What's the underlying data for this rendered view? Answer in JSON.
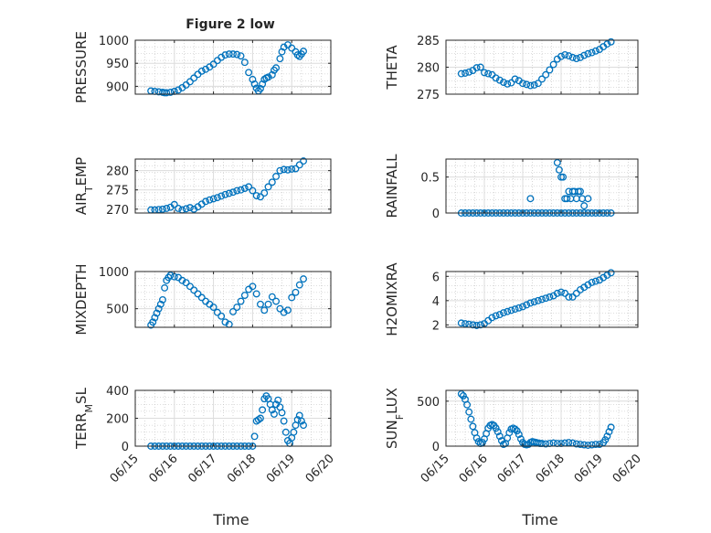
{
  "figure": {
    "title": "Figure 2 low",
    "colors": {
      "marker": "#0072BD",
      "axis": "#262626",
      "grid": "#dcdcdc",
      "minor_grid": "#bdbdbd"
    }
  },
  "chart_data": [
    {
      "type": "scatter",
      "ylabel": "PRESSURE",
      "ylim": [
        883,
        1000
      ],
      "yticks": [
        900,
        950,
        1000
      ],
      "xlim": [
        0,
        5
      ],
      "grid": true,
      "x": [
        0.4,
        0.5,
        0.6,
        0.7,
        0.75,
        0.8,
        0.9,
        1.0,
        1.1,
        1.2,
        1.3,
        1.4,
        1.5,
        1.6,
        1.7,
        1.8,
        1.9,
        2.0,
        2.1,
        2.2,
        2.3,
        2.4,
        2.5,
        2.6,
        2.7,
        2.8,
        2.9,
        3.0,
        3.05,
        3.1,
        3.15,
        3.2,
        3.25,
        3.3,
        3.35,
        3.4,
        3.5,
        3.55,
        3.6,
        3.7,
        3.75,
        3.8,
        3.9,
        4.0,
        4.1,
        4.15,
        4.2,
        4.25,
        4.3
      ],
      "y": [
        890,
        889,
        888,
        887,
        886,
        886,
        887,
        889,
        892,
        897,
        903,
        910,
        918,
        926,
        933,
        937,
        942,
        948,
        956,
        963,
        968,
        970,
        970,
        969,
        966,
        952,
        930,
        915,
        905,
        896,
        890,
        895,
        905,
        915,
        918,
        920,
        925,
        935,
        940,
        960,
        975,
        985,
        990,
        983,
        975,
        968,
        965,
        970,
        976
      ]
    },
    {
      "type": "scatter",
      "ylabel": "THETA",
      "ylim": [
        275,
        285
      ],
      "yticks": [
        275,
        280,
        285
      ],
      "xlim": [
        0,
        5
      ],
      "grid": true,
      "x": [
        0.4,
        0.5,
        0.6,
        0.7,
        0.8,
        0.9,
        1.0,
        1.1,
        1.2,
        1.3,
        1.4,
        1.5,
        1.6,
        1.7,
        1.8,
        1.9,
        2.0,
        2.1,
        2.2,
        2.3,
        2.4,
        2.5,
        2.6,
        2.7,
        2.8,
        2.9,
        3.0,
        3.1,
        3.2,
        3.3,
        3.4,
        3.5,
        3.6,
        3.7,
        3.8,
        3.9,
        4.0,
        4.1,
        4.2,
        4.3
      ],
      "y": [
        278.8,
        278.9,
        279.1,
        279.4,
        279.9,
        280.0,
        279.0,
        278.8,
        278.6,
        278.0,
        277.6,
        277.2,
        276.9,
        277.1,
        277.8,
        277.5,
        277.0,
        276.8,
        276.6,
        276.7,
        277.0,
        277.8,
        278.6,
        279.5,
        280.5,
        281.5,
        282.0,
        282.3,
        282.1,
        281.8,
        281.6,
        281.8,
        282.2,
        282.5,
        282.7,
        283.0,
        283.3,
        283.8,
        284.3,
        284.7
      ]
    },
    {
      "type": "scatter",
      "ylabel": "AIR_TEMP",
      "ylabel_display": {
        "base": "AIR",
        "sub": "T",
        "rest": "EMP"
      },
      "ylim": [
        269,
        283
      ],
      "yticks": [
        270,
        275,
        280
      ],
      "xlim": [
        0,
        5
      ],
      "grid": true,
      "x": [
        0.4,
        0.5,
        0.6,
        0.7,
        0.8,
        0.9,
        1.0,
        1.1,
        1.2,
        1.3,
        1.4,
        1.5,
        1.6,
        1.7,
        1.8,
        1.9,
        2.0,
        2.1,
        2.2,
        2.3,
        2.4,
        2.5,
        2.6,
        2.7,
        2.8,
        2.9,
        3.0,
        3.1,
        3.2,
        3.3,
        3.4,
        3.5,
        3.6,
        3.7,
        3.8,
        3.9,
        4.0,
        4.1,
        4.2,
        4.3
      ],
      "y": [
        269.8,
        269.8,
        269.9,
        270.0,
        270.2,
        270.5,
        271.2,
        270.2,
        269.8,
        270.1,
        270.4,
        270.0,
        270.6,
        271.3,
        272.0,
        272.4,
        272.7,
        273.0,
        273.4,
        273.8,
        274.1,
        274.4,
        274.8,
        275.0,
        275.4,
        275.8,
        274.8,
        273.5,
        273.2,
        274.2,
        275.8,
        277.0,
        278.5,
        280.0,
        280.3,
        280.2,
        280.4,
        280.5,
        281.5,
        282.5
      ]
    },
    {
      "type": "scatter",
      "ylabel": "RAINFALL",
      "ylim": [
        0,
        0.75
      ],
      "yticks": [
        0,
        0.5
      ],
      "xlim": [
        0,
        5
      ],
      "grid": true,
      "x": [
        0.4,
        0.5,
        0.6,
        0.7,
        0.8,
        0.9,
        1.0,
        1.1,
        1.2,
        1.3,
        1.4,
        1.5,
        1.6,
        1.7,
        1.8,
        1.9,
        2.0,
        2.1,
        2.2,
        2.3,
        2.4,
        2.5,
        2.6,
        2.7,
        2.8,
        2.9,
        3.0,
        3.1,
        3.2,
        3.3,
        3.4,
        3.5,
        3.6,
        3.7,
        3.8,
        3.9,
        4.0,
        4.1,
        4.2,
        4.3,
        2.2,
        2.9,
        2.95,
        3.0,
        3.05,
        3.1,
        3.15,
        3.2,
        3.25,
        3.3,
        3.35,
        3.4,
        3.45,
        3.5,
        3.55,
        3.6,
        3.7
      ],
      "y": [
        0,
        0,
        0,
        0,
        0,
        0,
        0,
        0,
        0,
        0,
        0,
        0,
        0,
        0,
        0,
        0,
        0,
        0,
        0,
        0,
        0,
        0,
        0,
        0,
        0,
        0,
        0,
        0,
        0,
        0,
        0,
        0,
        0,
        0,
        0,
        0,
        0,
        0,
        0,
        0,
        0.2,
        0.7,
        0.6,
        0.5,
        0.5,
        0.2,
        0.2,
        0.3,
        0.2,
        0.3,
        0.3,
        0.2,
        0.3,
        0.3,
        0.2,
        0.1,
        0.2
      ]
    },
    {
      "type": "scatter",
      "ylabel": "MIXDEPTH",
      "ylim": [
        250,
        1000
      ],
      "yticks": [
        500,
        1000
      ],
      "xlim": [
        0,
        5
      ],
      "grid": true,
      "x": [
        0.4,
        0.45,
        0.5,
        0.55,
        0.6,
        0.65,
        0.7,
        0.75,
        0.8,
        0.85,
        0.9,
        1.0,
        1.1,
        1.2,
        1.3,
        1.4,
        1.5,
        1.6,
        1.7,
        1.8,
        1.9,
        2.0,
        2.1,
        2.2,
        2.3,
        2.4,
        2.5,
        2.6,
        2.7,
        2.8,
        2.9,
        3.0,
        3.1,
        3.2,
        3.3,
        3.4,
        3.5,
        3.6,
        3.7,
        3.8,
        3.9,
        4.0,
        4.1,
        4.2,
        4.3
      ],
      "y": [
        280,
        320,
        380,
        440,
        500,
        560,
        620,
        780,
        880,
        920,
        950,
        930,
        920,
        880,
        850,
        800,
        750,
        700,
        650,
        600,
        560,
        520,
        450,
        400,
        320,
        290,
        460,
        520,
        600,
        680,
        760,
        800,
        700,
        560,
        480,
        560,
        660,
        600,
        500,
        450,
        480,
        650,
        720,
        820,
        900
      ]
    },
    {
      "type": "scatter",
      "ylabel": "H2OMIXRA",
      "ylim": [
        1.8,
        6.4
      ],
      "yticks": [
        2,
        4,
        6
      ],
      "xlim": [
        0,
        5
      ],
      "grid": true,
      "x": [
        0.4,
        0.5,
        0.6,
        0.7,
        0.8,
        0.9,
        1.0,
        1.1,
        1.2,
        1.3,
        1.4,
        1.5,
        1.6,
        1.7,
        1.8,
        1.9,
        2.0,
        2.1,
        2.2,
        2.3,
        2.4,
        2.5,
        2.6,
        2.7,
        2.8,
        2.9,
        3.0,
        3.1,
        3.2,
        3.3,
        3.4,
        3.5,
        3.6,
        3.7,
        3.8,
        3.9,
        4.0,
        4.1,
        4.2,
        4.3
      ],
      "y": [
        2.15,
        2.1,
        2.05,
        2.0,
        1.95,
        2.0,
        2.1,
        2.35,
        2.6,
        2.75,
        2.85,
        3.0,
        3.1,
        3.2,
        3.3,
        3.4,
        3.5,
        3.65,
        3.8,
        3.9,
        4.0,
        4.1,
        4.2,
        4.3,
        4.4,
        4.6,
        4.7,
        4.6,
        4.3,
        4.3,
        4.6,
        4.9,
        5.1,
        5.3,
        5.5,
        5.6,
        5.7,
        5.9,
        6.1,
        6.3
      ]
    },
    {
      "type": "scatter",
      "ylabel": "TERR_MSL",
      "ylabel_display": {
        "base": "TERR",
        "sub": "M",
        "rest": "SL"
      },
      "ylim": [
        0,
        400
      ],
      "yticks": [
        0,
        200,
        400
      ],
      "xlim": [
        0,
        5
      ],
      "xticklabels": [
        "06/15",
        "06/16",
        "06/17",
        "06/18",
        "06/19",
        "06/20"
      ],
      "xlabel": "Time",
      "grid": true,
      "x": [
        0.4,
        0.5,
        0.6,
        0.7,
        0.8,
        0.9,
        1.0,
        1.1,
        1.2,
        1.3,
        1.4,
        1.5,
        1.6,
        1.7,
        1.8,
        1.9,
        2.0,
        2.1,
        2.2,
        2.3,
        2.4,
        2.5,
        2.6,
        2.7,
        2.8,
        2.9,
        3.0,
        3.05,
        3.1,
        3.15,
        3.2,
        3.25,
        3.3,
        3.35,
        3.4,
        3.45,
        3.5,
        3.55,
        3.6,
        3.65,
        3.7,
        3.75,
        3.8,
        3.85,
        3.9,
        3.95,
        4.0,
        4.05,
        4.1,
        4.15,
        4.2,
        4.25,
        4.3
      ],
      "y": [
        0,
        0,
        0,
        0,
        0,
        0,
        0,
        0,
        0,
        0,
        0,
        0,
        0,
        0,
        0,
        0,
        0,
        0,
        0,
        0,
        0,
        0,
        0,
        0,
        0,
        0,
        0,
        70,
        180,
        190,
        200,
        260,
        340,
        360,
        340,
        300,
        260,
        230,
        300,
        330,
        280,
        240,
        180,
        100,
        40,
        20,
        60,
        100,
        150,
        190,
        220,
        180,
        150
      ]
    },
    {
      "type": "scatter",
      "ylabel": "SUN_FLUX",
      "ylabel_display": {
        "base": "SUN",
        "sub": "F",
        "rest": "LUX"
      },
      "ylim": [
        0,
        620
      ],
      "yticks": [
        0,
        500
      ],
      "xlim": [
        0,
        5
      ],
      "xticklabels": [
        "06/15",
        "06/16",
        "06/17",
        "06/18",
        "06/19",
        "06/20"
      ],
      "xlabel": "Time",
      "grid": true,
      "x": [
        0.4,
        0.45,
        0.5,
        0.55,
        0.6,
        0.65,
        0.7,
        0.75,
        0.8,
        0.85,
        0.9,
        0.95,
        1.0,
        1.05,
        1.1,
        1.15,
        1.2,
        1.25,
        1.3,
        1.35,
        1.4,
        1.45,
        1.5,
        1.55,
        1.6,
        1.65,
        1.7,
        1.75,
        1.8,
        1.85,
        1.9,
        1.95,
        2.0,
        2.05,
        2.1,
        2.15,
        2.2,
        2.25,
        2.3,
        2.35,
        2.4,
        2.45,
        2.5,
        2.6,
        2.7,
        2.8,
        2.9,
        3.0,
        3.1,
        3.2,
        3.3,
        3.4,
        3.5,
        3.6,
        3.7,
        3.8,
        3.9,
        4.0,
        4.1,
        4.15,
        4.2,
        4.25,
        4.3
      ],
      "y": [
        580,
        560,
        520,
        460,
        380,
        300,
        220,
        150,
        90,
        50,
        30,
        40,
        80,
        140,
        200,
        230,
        240,
        230,
        200,
        160,
        110,
        60,
        20,
        30,
        90,
        150,
        190,
        200,
        190,
        170,
        130,
        80,
        40,
        20,
        15,
        20,
        40,
        50,
        45,
        40,
        35,
        30,
        30,
        25,
        30,
        35,
        30,
        30,
        35,
        40,
        35,
        25,
        20,
        15,
        10,
        15,
        20,
        20,
        40,
        70,
        110,
        160,
        210
      ]
    }
  ]
}
